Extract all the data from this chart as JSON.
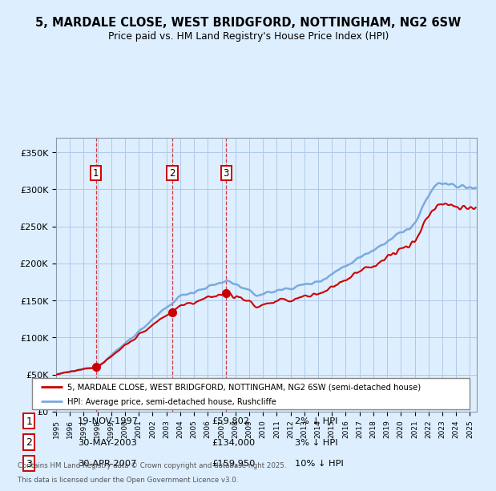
{
  "title_line1": "5, MARDALE CLOSE, WEST BRIDGFORD, NOTTINGHAM, NG2 6SW",
  "title_line2": "Price paid vs. HM Land Registry's House Price Index (HPI)",
  "ylabel_ticks": [
    "£0",
    "£50K",
    "£100K",
    "£150K",
    "£200K",
    "£250K",
    "£300K",
    "£350K"
  ],
  "ylabel_values": [
    0,
    50000,
    100000,
    150000,
    200000,
    250000,
    300000,
    350000
  ],
  "ylim": [
    0,
    370000
  ],
  "xlim": [
    1995.0,
    2025.5
  ],
  "transactions": [
    {
      "num": 1,
      "date_float": 1997.883,
      "price": 59802,
      "label": "19-NOV-1997",
      "price_str": "£59,802",
      "hpi_str": "2% ↓ HPI"
    },
    {
      "num": 2,
      "date_float": 2003.413,
      "price": 134000,
      "label": "30-MAY-2003",
      "price_str": "£134,000",
      "hpi_str": "3% ↓ HPI"
    },
    {
      "num": 3,
      "date_float": 2007.328,
      "price": 159950,
      "label": "30-APR-2007",
      "price_str": "£159,950",
      "hpi_str": "10% ↓ HPI"
    }
  ],
  "legend_line1": "5, MARDALE CLOSE, WEST BRIDGFORD, NOTTINGHAM, NG2 6SW (semi-detached house)",
  "legend_line2": "HPI: Average price, semi-detached house, Rushcliffe",
  "footer_line1": "Contains HM Land Registry data © Crown copyright and database right 2025.",
  "footer_line2": "This data is licensed under the Open Government Licence v3.0.",
  "property_color": "#cc0000",
  "hpi_color": "#7aaadd",
  "background_color": "#ddeeff",
  "plot_bg_color": "#ddeeff",
  "grid_color": "#b0c8e8",
  "vline_color": "#cc0000"
}
